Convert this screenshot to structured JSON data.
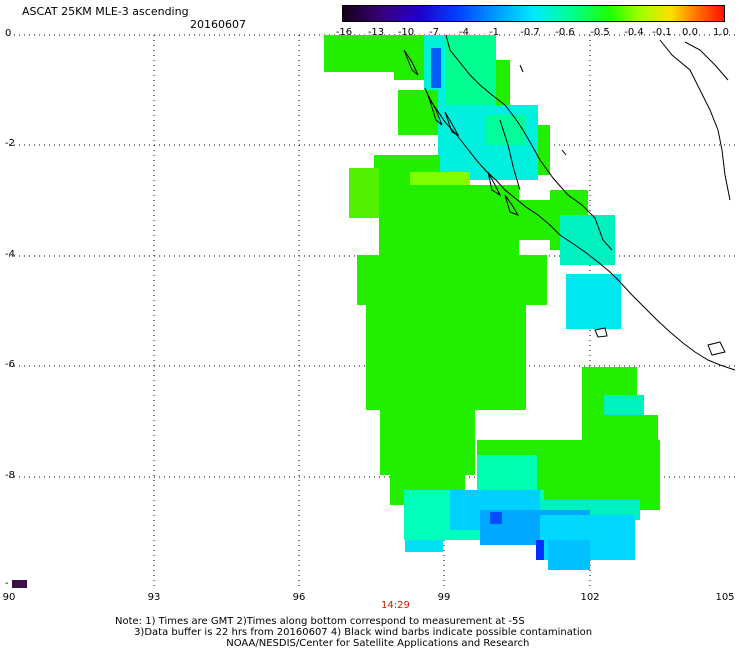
{
  "header": {
    "title": "ASCAT 25KM MLE-3 ascending",
    "date": "20160607"
  },
  "colorbar": {
    "labels": [
      "-16",
      "-13",
      "-10",
      "-7",
      "-4",
      "-1",
      "-0.7",
      "-0.6",
      "-0.5",
      "-0.4",
      "-0.1",
      "0.0",
      "1.0"
    ]
  },
  "axes": {
    "y_labels": [
      "0",
      "-2",
      "-4",
      "-6",
      "-8",
      "-"
    ],
    "x_labels": [
      "90",
      "93",
      "96",
      "99",
      "102",
      "105"
    ],
    "time_label": "14:29"
  },
  "notes": {
    "line1": "Note: 1) Times are GMT 2)Times along bottom correspond to measurement at -5S",
    "line2": "      3)Data buffer is 22 hrs from 20160607 4) Black wind barbs indicate possible contamination",
    "line3": "                                   NOAA/NESDIS/Center for Satellite Applications and Research"
  },
  "colors": {
    "green": "#22ee00",
    "cyan": "#00e8f0",
    "aqua": "#00ffc8",
    "blue": "#00a8ff",
    "lime": "#88ff00",
    "dark_blue": "#0000ff"
  }
}
